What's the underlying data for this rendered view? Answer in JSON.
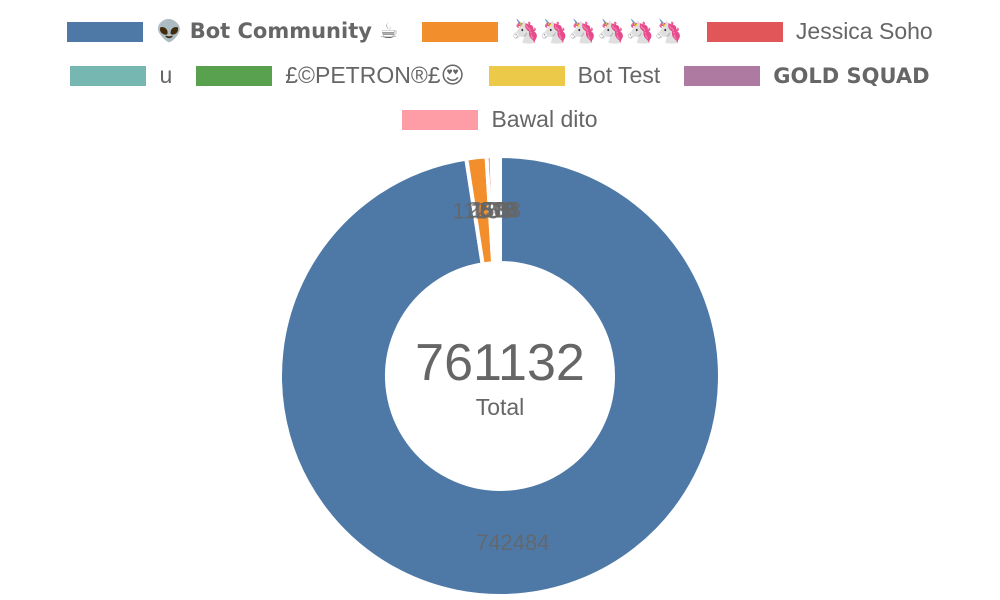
{
  "chart_data": {
    "type": "doughnut",
    "total": "761132",
    "total_label": "Total",
    "series": [
      {
        "name": "👽 Bot Community ☕",
        "value": 742484,
        "color": "#4e79a7",
        "bold": true
      },
      {
        "name": "🦄🦄🦄🦄🦄🦄",
        "value": 11255,
        "color": "#f28e2b",
        "bold": false
      },
      {
        "name": "Jessica Soho",
        "value": 2673,
        "color": "#e15759",
        "bold": false
      },
      {
        "name": "u",
        "value": 1504,
        "color": "#76b7b2",
        "bold": false
      },
      {
        "name": "£©PETRON®£😍",
        "value": 1283,
        "color": "#59a14f",
        "bold": false
      },
      {
        "name": "Bot Test",
        "value": 815,
        "color": "#edc949",
        "bold": false
      },
      {
        "name": "GOLD SQUAD",
        "value": 618,
        "color": "#af7aa1",
        "bold": true
      },
      {
        "name": "Bawal dito",
        "value": 500,
        "color": "#ff9da7",
        "bold": false
      }
    ]
  }
}
